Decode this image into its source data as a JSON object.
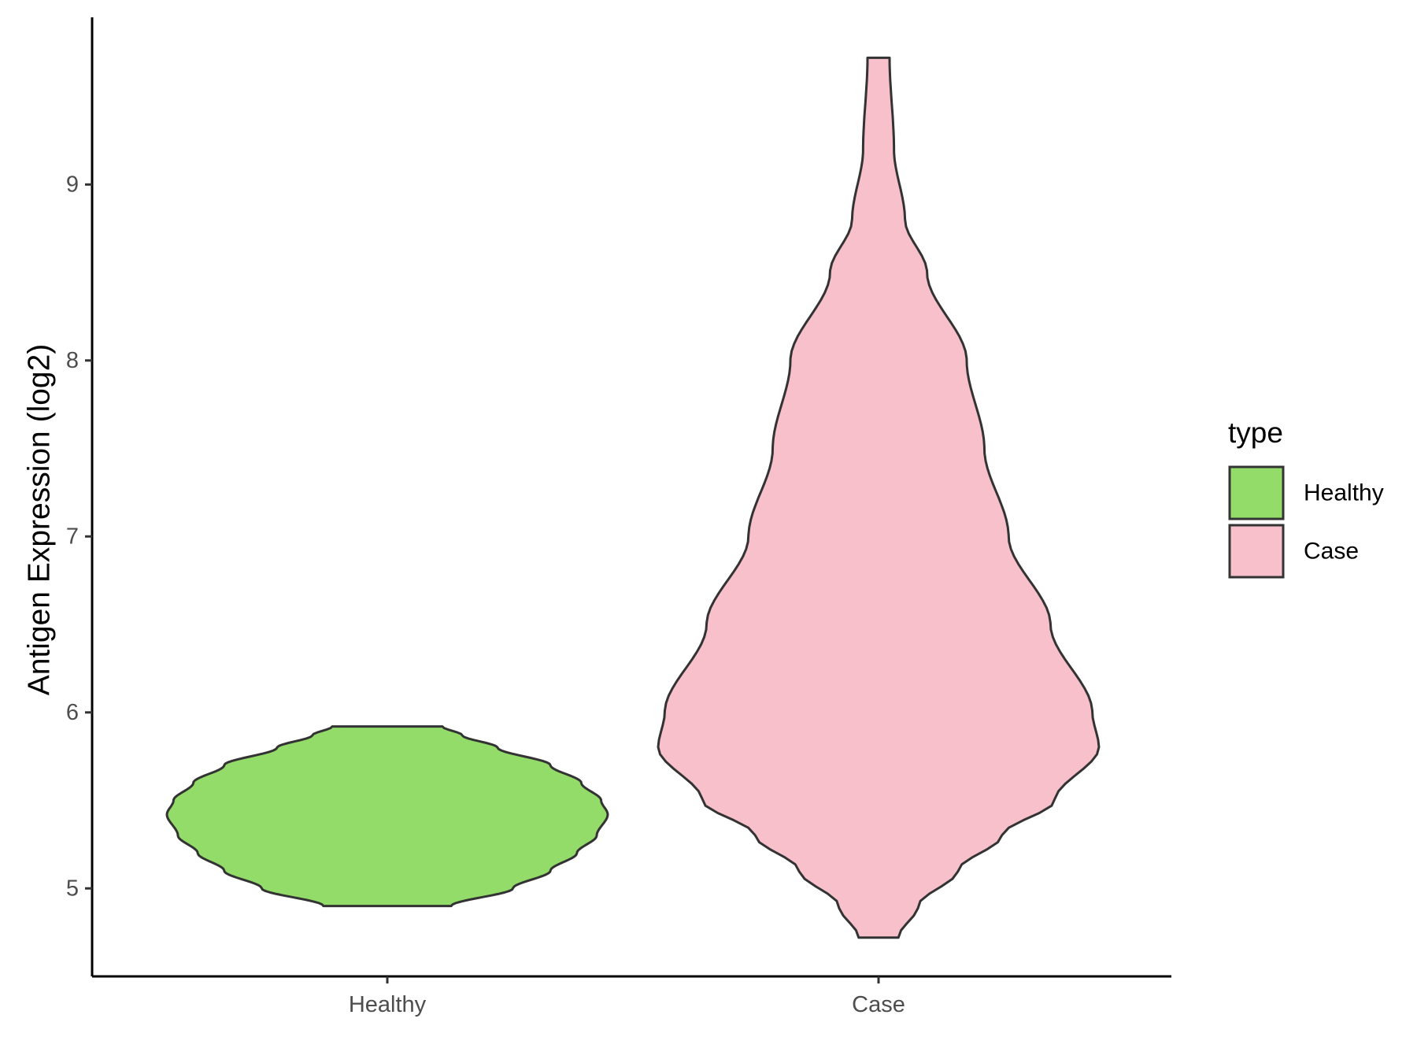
{
  "chart_data": {
    "type": "violin",
    "title": "",
    "xlabel": "",
    "ylabel": "Antigen Expression (log2)",
    "ylim": [
      4.5,
      9.95
    ],
    "y_ticks": [
      "5",
      "6",
      "7",
      "8",
      "9"
    ],
    "categories": [
      "Healthy",
      "Case"
    ],
    "grid": false,
    "legend": {
      "title": "type",
      "position": "right",
      "entries": [
        "Healthy",
        "Case"
      ]
    },
    "colors": {
      "Healthy": "#93DC69",
      "Case": "#F7C0CB",
      "outline": "#333333"
    },
    "series": [
      {
        "name": "Healthy",
        "min": 4.9,
        "max": 5.92,
        "density_profile": [
          [
            4.9,
            0.29
          ],
          [
            5.0,
            0.57
          ],
          [
            5.1,
            0.74
          ],
          [
            5.2,
            0.86
          ],
          [
            5.3,
            0.95
          ],
          [
            5.42,
            1.0
          ],
          [
            5.5,
            0.97
          ],
          [
            5.6,
            0.88
          ],
          [
            5.7,
            0.74
          ],
          [
            5.8,
            0.5
          ],
          [
            5.87,
            0.34
          ],
          [
            5.92,
            0.25
          ]
        ]
      },
      {
        "name": "Case",
        "min": 4.72,
        "max": 9.72,
        "density_profile": [
          [
            4.72,
            0.09
          ],
          [
            4.9,
            0.18
          ],
          [
            5.1,
            0.36
          ],
          [
            5.3,
            0.56
          ],
          [
            5.5,
            0.8
          ],
          [
            5.8,
            1.0
          ],
          [
            6.0,
            0.97
          ],
          [
            6.5,
            0.78
          ],
          [
            7.0,
            0.59
          ],
          [
            7.5,
            0.48
          ],
          [
            8.0,
            0.4
          ],
          [
            8.5,
            0.22
          ],
          [
            8.8,
            0.12
          ],
          [
            9.2,
            0.07
          ],
          [
            9.72,
            0.05
          ]
        ]
      }
    ]
  }
}
